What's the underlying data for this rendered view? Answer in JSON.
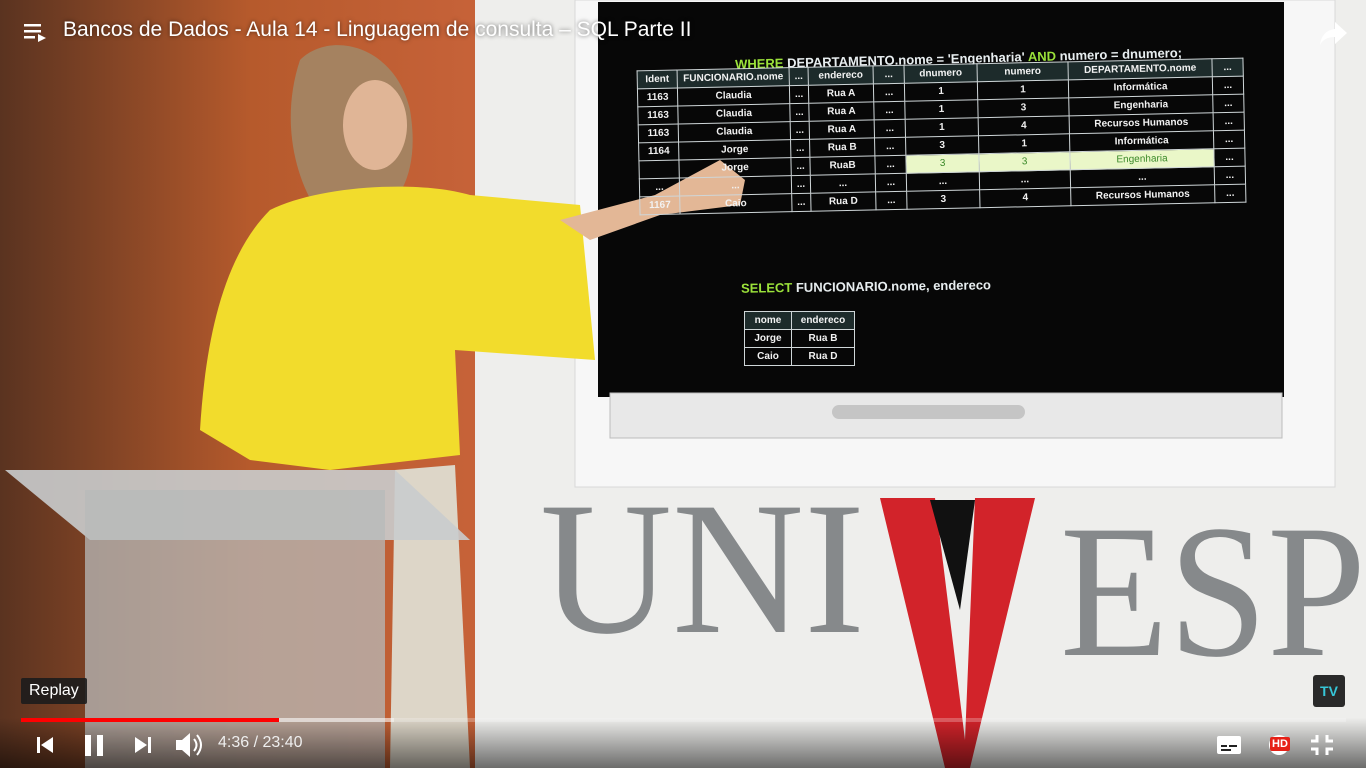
{
  "video_title": "Bancos de Dados - Aula 14 - Linguagem de consulta – SQL Parte II",
  "slide": {
    "where_clause": {
      "keyword": "WHERE",
      "condition": "DEPARTAMENTO.nome = 'Engenharia'",
      "connector": "AND",
      "condition2": "numero = dnumero;"
    },
    "join_table": {
      "header": [
        "Ident",
        "FUNCIONARIO.nome",
        "...",
        "endereco",
        "...",
        "dnumero",
        "numero",
        "DEPARTAMENTO.nome",
        "..."
      ],
      "rows": [
        [
          "1163",
          "Claudia",
          "...",
          "Rua A",
          "...",
          "1",
          "1",
          "Informática",
          "..."
        ],
        [
          "1163",
          "Claudia",
          "...",
          "Rua A",
          "...",
          "1",
          "3",
          "Engenharia",
          "..."
        ],
        [
          "1163",
          "Claudia",
          "...",
          "Rua A",
          "...",
          "1",
          "4",
          "Recursos Humanos",
          "..."
        ],
        [
          "1164",
          "Jorge",
          "...",
          "Rua B",
          "...",
          "3",
          "1",
          "Informática",
          "..."
        ],
        [
          null,
          "Jorge",
          "...",
          "RuaB",
          "...",
          "3",
          "3",
          "Engenharia",
          "..."
        ],
        [
          "...",
          "...",
          "...",
          "...",
          "...",
          "...",
          "...",
          "...",
          "..."
        ],
        [
          "1167",
          "Caio",
          "...",
          "Rua D",
          "...",
          "3",
          "4",
          "Recursos Humanos",
          "..."
        ]
      ],
      "highlighted_row": 4
    },
    "select_clause": {
      "keyword": "SELECT",
      "columns": "FUNCIONARIO.nome, endereco"
    },
    "result_table": {
      "header": [
        "nome",
        "endereco"
      ],
      "rows": [
        [
          "Jorge",
          "Rua B"
        ],
        [
          "Caio",
          "Rua D"
        ]
      ]
    }
  },
  "logo": {
    "part1": "UNI",
    "part2": "V",
    "part3": "ESP"
  },
  "channel_badge": "TV",
  "player": {
    "tooltip": "Replay",
    "time": "4:36 / 23:40",
    "quality_badge": "HD"
  }
}
